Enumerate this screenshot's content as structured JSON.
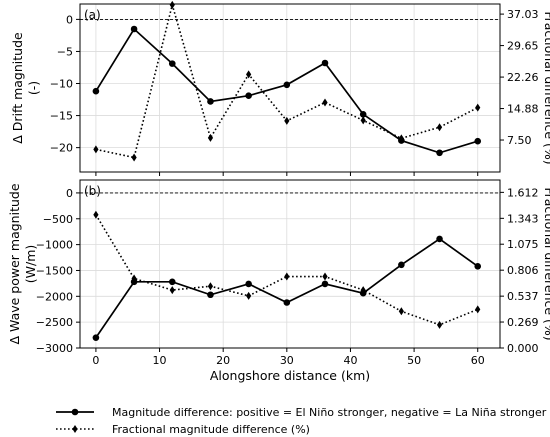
{
  "chart_data": [
    {
      "type": "line",
      "panel_label": "(a)",
      "xlabel": "",
      "ylabel": "Δ Drift magnitude\n(-)",
      "y2label": "Fractional difference (%)",
      "xlim": [
        -2.5,
        63.5
      ],
      "ylim": [
        -23.8,
        2.4
      ],
      "y2lim": [
        0,
        39.4
      ],
      "yticks": [
        0,
        -5,
        -10,
        -15,
        -20
      ],
      "ytick_labels": [
        "0",
        "−5",
        "−10",
        "−15",
        "−20"
      ],
      "y2ticks": [
        37.03,
        29.65,
        22.26,
        14.88,
        7.5
      ],
      "y2tick_labels": [
        "37.03",
        "29.65",
        "22.26",
        "14.88",
        "7.50"
      ],
      "xticks": [
        0,
        10,
        20,
        30,
        40,
        50,
        60
      ],
      "grid": true,
      "zero_line": 0,
      "x": [
        0,
        6,
        12,
        18,
        24,
        30,
        36,
        42,
        48,
        54,
        60
      ],
      "series": [
        {
          "name": "Magnitude difference: positive = El Niño stronger, negative = La Niña stronger",
          "axis": "left",
          "values": [
            -11.2,
            -1.5,
            -6.9,
            -12.8,
            -11.9,
            -10.2,
            -6.8,
            -14.8,
            -18.9,
            -20.8,
            -19.0
          ]
        },
        {
          "name": "Fractional magnitude difference (%)",
          "axis": "right",
          "values": [
            5.3,
            3.4,
            39.2,
            8.0,
            22.9,
            12.0,
            16.3,
            12.1,
            7.9,
            10.5,
            15.1
          ]
        }
      ]
    },
    {
      "type": "line",
      "panel_label": "(b)",
      "xlabel": "Alongshore distance (km)",
      "ylabel": "Δ Wave power magnitude\n(W/m)",
      "y2label": "Fractional difference (%)",
      "xlim": [
        -2.5,
        63.5
      ],
      "ylim": [
        -3000,
        250
      ],
      "y2lim": [
        0,
        1.74
      ],
      "yticks": [
        0,
        -500,
        -1000,
        -1500,
        -2000,
        -2500,
        -3000
      ],
      "ytick_labels": [
        "0",
        "−500",
        "−1000",
        "−1500",
        "−2000",
        "−2500",
        "−3000"
      ],
      "y2ticks": [
        1.612,
        1.343,
        1.075,
        0.806,
        0.537,
        0.269,
        0.0
      ],
      "y2tick_labels": [
        "1.612",
        "1.343",
        "1.075",
        "0.806",
        "0.537",
        "0.269",
        "0.000"
      ],
      "xticks": [
        0,
        10,
        20,
        30,
        40,
        50,
        60
      ],
      "xtick_labels": [
        "0",
        "10",
        "20",
        "30",
        "40",
        "50",
        "60"
      ],
      "grid": true,
      "zero_line": 0,
      "x": [
        0,
        6,
        12,
        18,
        24,
        30,
        36,
        42,
        48,
        54,
        60
      ],
      "series": [
        {
          "name": "Magnitude difference: positive = El Niño stronger, negative = La Niña stronger",
          "axis": "left",
          "values": [
            -2800,
            -1720,
            -1720,
            -1970,
            -1760,
            -2120,
            -1760,
            -1940,
            -1390,
            -890,
            -1420
          ]
        },
        {
          "name": "Fractional magnitude difference (%)",
          "axis": "right",
          "values": [
            1.38,
            0.72,
            0.6,
            0.64,
            0.54,
            0.74,
            0.74,
            0.6,
            0.38,
            0.24,
            0.4
          ]
        }
      ]
    }
  ],
  "legend": {
    "placement": "bottom",
    "items": [
      "Magnitude difference: positive = El Niño stronger, negative = La Niña stronger",
      "Fractional magnitude difference (%)"
    ]
  }
}
